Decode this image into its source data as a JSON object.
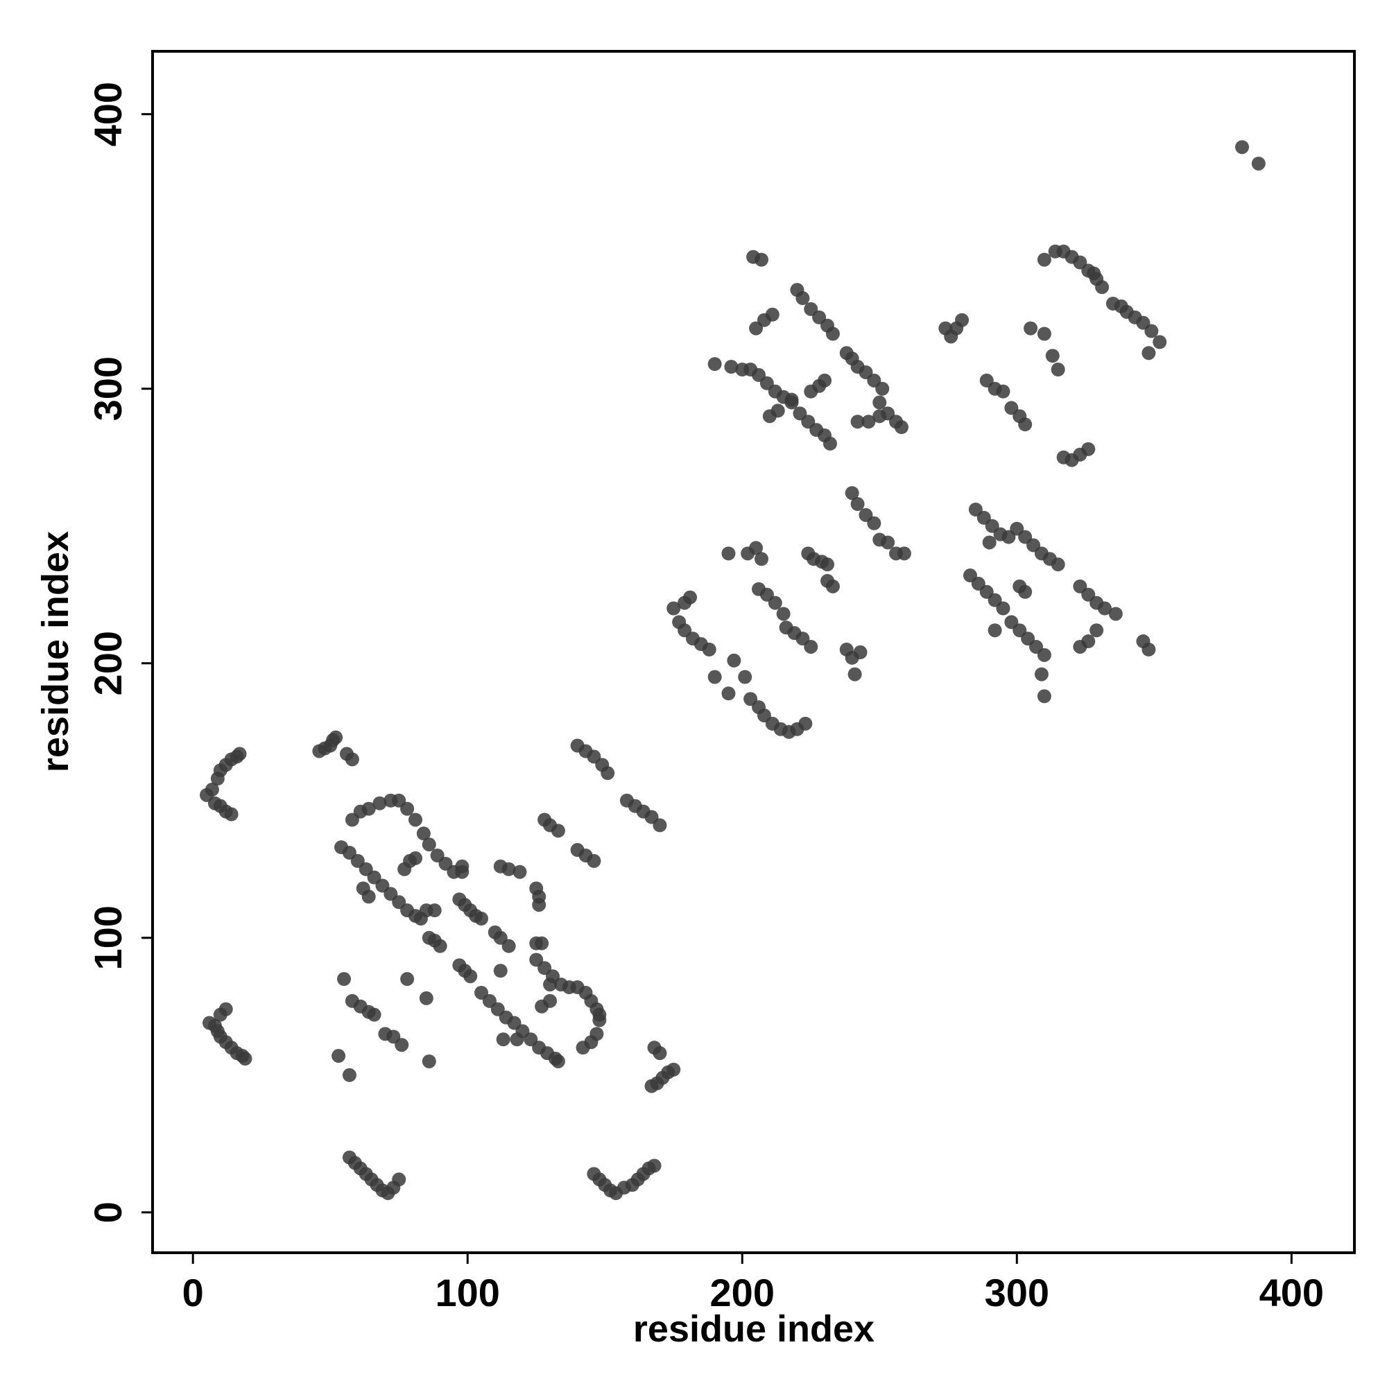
{
  "chart_data": {
    "type": "scatter",
    "xlabel": "residue index",
    "ylabel": "residue index",
    "color": "#3a3a3a",
    "xlim": [
      -14.7,
      422.9
    ],
    "ylim": [
      -14.7,
      422.9
    ],
    "xticks": [
      0,
      100,
      200,
      300,
      400
    ],
    "yticks": [
      0,
      100,
      200,
      300,
      400
    ],
    "grid": false,
    "x": [
      5,
      7,
      9,
      10,
      12,
      14,
      16,
      17,
      8,
      10,
      12,
      14,
      6,
      8,
      9,
      10,
      12,
      14,
      16,
      18,
      19,
      10,
      12,
      46,
      48,
      50,
      51,
      52,
      56,
      58,
      54,
      57,
      60,
      63,
      66,
      69,
      72,
      75,
      78,
      81,
      83,
      58,
      61,
      64,
      68,
      72,
      75,
      78,
      81,
      84,
      86,
      89,
      92,
      95,
      62,
      64,
      85,
      88,
      77,
      79,
      81,
      98,
      98,
      97,
      99,
      101,
      103,
      105,
      110,
      112,
      115,
      86,
      88,
      90,
      112,
      115,
      119,
      125,
      126,
      126,
      97,
      99,
      101,
      112,
      105,
      108,
      111,
      114,
      117,
      120,
      123,
      126,
      129,
      132,
      133,
      113,
      118,
      125,
      127,
      125,
      128,
      131,
      134,
      137,
      140,
      143,
      145,
      147,
      148,
      148,
      127,
      130,
      130,
      142,
      145,
      147,
      55,
      78,
      85,
      53,
      57,
      86,
      58,
      61,
      64,
      66,
      70,
      73,
      76,
      128,
      130,
      133,
      140,
      143,
      146,
      149,
      151,
      140,
      143,
      146,
      158,
      161,
      164,
      167,
      170,
      168,
      170,
      167,
      169,
      171,
      173,
      175,
      57,
      59,
      61,
      63,
      65,
      67,
      69,
      71,
      73,
      75,
      146,
      148,
      150,
      152,
      154,
      157,
      160,
      162,
      164,
      166,
      168,
      175,
      177,
      179,
      182,
      185,
      188,
      179,
      181,
      190,
      195,
      197,
      201,
      203,
      206,
      208,
      211,
      214,
      217,
      220,
      223,
      195,
      202,
      205,
      207,
      206,
      209,
      212,
      215,
      216,
      219,
      222,
      225,
      224,
      226,
      229,
      231,
      231,
      233,
      238,
      240,
      241,
      243,
      240,
      242,
      245,
      248,
      250,
      253,
      256,
      259,
      204,
      207,
      205,
      208,
      211,
      190,
      196,
      200,
      203,
      206,
      209,
      212,
      215,
      218,
      210,
      213,
      220,
      222,
      225,
      228,
      231,
      233,
      218,
      221,
      224,
      227,
      230,
      232,
      225,
      228,
      230,
      238,
      240,
      242,
      245,
      248,
      251,
      242,
      246,
      250,
      250,
      253,
      256,
      258,
      274,
      276,
      278,
      280,
      289,
      292,
      295,
      298,
      301,
      303,
      305,
      310,
      313,
      315,
      310,
      314,
      317,
      320,
      323,
      326,
      329,
      331,
      328,
      335,
      338,
      340,
      343,
      346,
      349,
      352,
      348,
      317,
      320,
      323,
      326,
      285,
      288,
      291,
      294,
      297,
      300,
      303,
      306,
      309,
      312,
      315,
      283,
      286,
      289,
      292,
      295,
      298,
      301,
      304,
      307,
      310,
      309,
      310,
      292,
      290,
      301,
      303,
      323,
      326,
      329,
      332,
      336,
      323,
      326,
      329,
      346,
      348,
      382,
      388
    ],
    "y": [
      152,
      154,
      158,
      161,
      163,
      165,
      166,
      167,
      149,
      148,
      146,
      145,
      69,
      68,
      66,
      64,
      62,
      60,
      58,
      57,
      56,
      72,
      74,
      168,
      169,
      170,
      172,
      173,
      167,
      165,
      133,
      131,
      128,
      125,
      122,
      119,
      116,
      113,
      110,
      108,
      107,
      143,
      146,
      147,
      149,
      150,
      150,
      147,
      143,
      138,
      134,
      130,
      127,
      124,
      118,
      115,
      110,
      110,
      125,
      128,
      129,
      124,
      126,
      114,
      112,
      110,
      108,
      107,
      102,
      100,
      97,
      100,
      99,
      97,
      126,
      125,
      124,
      118,
      115,
      112,
      90,
      88,
      86,
      88,
      80,
      77,
      74,
      71,
      69,
      66,
      63,
      60,
      58,
      56,
      55,
      63,
      63,
      98,
      98,
      92,
      89,
      86,
      83,
      82,
      82,
      80,
      77,
      74,
      72,
      70,
      75,
      77,
      83,
      60,
      62,
      65,
      85,
      85,
      78,
      57,
      50,
      55,
      77,
      75,
      73,
      72,
      65,
      64,
      61,
      143,
      141,
      139,
      170,
      168,
      166,
      163,
      160,
      132,
      130,
      128,
      150,
      148,
      146,
      144,
      141,
      60,
      58,
      46,
      47,
      49,
      51,
      52,
      20,
      18,
      16,
      14,
      12,
      10,
      8,
      7,
      9,
      12,
      14,
      12,
      10,
      8,
      7,
      9,
      10,
      12,
      14,
      16,
      17,
      220,
      215,
      212,
      209,
      207,
      205,
      222,
      224,
      195,
      189,
      201,
      195,
      187,
      184,
      181,
      178,
      176,
      175,
      176,
      178,
      240,
      240,
      242,
      238,
      227,
      225,
      222,
      218,
      213,
      211,
      209,
      206,
      240,
      238,
      237,
      236,
      230,
      228,
      205,
      202,
      196,
      204,
      262,
      258,
      254,
      251,
      245,
      244,
      240,
      240,
      348,
      347,
      322,
      325,
      327,
      309,
      308,
      307,
      307,
      305,
      302,
      299,
      297,
      296,
      290,
      292,
      336,
      333,
      329,
      326,
      323,
      320,
      295,
      291,
      288,
      285,
      283,
      280,
      299,
      301,
      303,
      313,
      311,
      308,
      306,
      303,
      300,
      288,
      288,
      290,
      295,
      291,
      288,
      286,
      322,
      319,
      322,
      325,
      303,
      300,
      299,
      293,
      290,
      287,
      322,
      320,
      312,
      307,
      347,
      350,
      350,
      348,
      346,
      343,
      340,
      337,
      342,
      331,
      330,
      328,
      326,
      324,
      321,
      317,
      313,
      275,
      274,
      276,
      278,
      256,
      253,
      250,
      247,
      246,
      249,
      246,
      243,
      240,
      238,
      236,
      232,
      229,
      226,
      223,
      220,
      215,
      212,
      209,
      206,
      203,
      196,
      188,
      212,
      244,
      228,
      226,
      228,
      225,
      222,
      220,
      218,
      206,
      208,
      212,
      208,
      205,
      388,
      382
    ]
  }
}
